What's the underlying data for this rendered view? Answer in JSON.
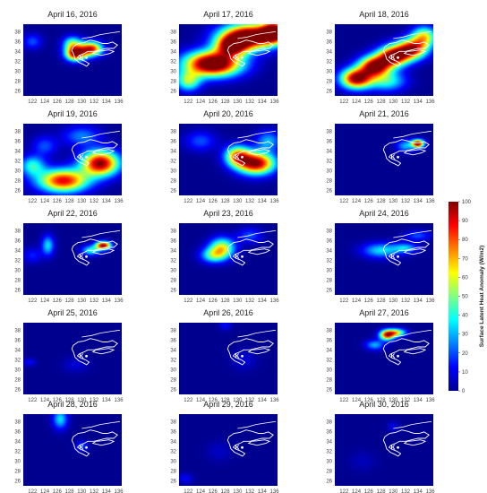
{
  "chart_data": [
    {
      "type": "heatmap",
      "title": "April 16, 2016",
      "marker": "K",
      "blobs": [
        [
          129,
          33.5,
          1.6,
          1.4,
          95
        ],
        [
          131.5,
          34.5,
          1.8,
          1.4,
          90
        ],
        [
          128.5,
          35.5,
          1.5,
          1.5,
          50
        ],
        [
          122,
          36,
          1.5,
          1.5,
          20
        ]
      ]
    },
    {
      "type": "heatmap",
      "title": "April 17, 2016",
      "marker": "K",
      "blobs": [
        [
          126,
          31.5,
          4.5,
          2.5,
          120
        ],
        [
          132,
          37,
          4.5,
          2.5,
          120
        ],
        [
          136,
          38,
          2,
          2,
          100
        ],
        [
          129,
          35,
          2.5,
          2,
          80
        ],
        [
          122,
          28,
          2,
          2,
          50
        ]
      ]
    },
    {
      "type": "heatmap",
      "title": "April 18, 2016",
      "marker": "K",
      "blobs": [
        [
          124,
          28.5,
          2.5,
          2,
          100
        ],
        [
          127,
          31,
          2.5,
          2,
          100
        ],
        [
          130,
          33,
          2.5,
          2,
          100
        ],
        [
          133,
          34.5,
          2.5,
          2,
          90
        ],
        [
          135,
          37,
          2,
          2,
          60
        ],
        [
          129,
          28,
          3,
          2,
          40
        ]
      ]
    },
    {
      "type": "heatmap",
      "title": "April 19, 2016",
      "marker": "K",
      "blobs": [
        [
          127,
          28,
          4,
          2.3,
          90
        ],
        [
          133,
          31.5,
          3,
          2.5,
          100
        ],
        [
          122,
          31,
          2,
          2,
          40
        ],
        [
          130,
          37,
          3,
          2,
          25
        ],
        [
          124,
          35,
          2,
          2,
          20
        ]
      ]
    },
    {
      "type": "heatmap",
      "title": "April 20, 2016",
      "marker": "K",
      "blobs": [
        [
          133,
          31.5,
          3,
          2.2,
          100
        ],
        [
          130,
          33,
          2,
          2,
          70
        ],
        [
          124,
          36,
          2.5,
          2,
          20
        ],
        [
          135,
          36,
          2,
          2,
          30
        ]
      ]
    },
    {
      "type": "heatmap",
      "title": "April 21, 2016",
      "marker": "K",
      "blobs": [
        [
          134,
          35.5,
          1,
          0.8,
          100
        ],
        [
          132,
          35,
          1.5,
          1.2,
          30
        ]
      ]
    },
    {
      "type": "heatmap",
      "title": "April 22, 2016",
      "marker": "K",
      "blobs": [
        [
          133.5,
          35,
          1.2,
          0.8,
          100
        ],
        [
          131.5,
          34,
          1.5,
          1,
          40
        ],
        [
          124.5,
          35,
          1,
          2,
          35
        ],
        [
          122,
          33,
          1.5,
          1.5,
          15
        ]
      ]
    },
    {
      "type": "heatmap",
      "title": "April 23, 2016",
      "marker": "K",
      "blobs": [
        [
          127.5,
          34.5,
          2,
          2,
          60
        ],
        [
          126,
          33,
          2,
          1.5,
          40
        ],
        [
          132,
          37,
          2,
          1.5,
          20
        ]
      ]
    },
    {
      "type": "heatmap",
      "title": "April 24, 2016",
      "marker": "K",
      "blobs": [
        [
          128,
          34,
          3,
          1.5,
          35
        ],
        [
          132,
          34.5,
          2,
          1,
          30
        ],
        [
          134,
          37,
          2,
          1,
          20
        ]
      ]
    },
    {
      "type": "heatmap",
      "title": "April 25, 2016",
      "marker": "K",
      "blobs": [
        [
          121.5,
          31.5,
          1,
          0.8,
          12
        ],
        [
          129,
          31,
          2,
          1.5,
          8
        ]
      ]
    },
    {
      "type": "heatmap",
      "title": "April 26, 2016",
      "marker": "K",
      "blobs": [
        [
          128,
          39,
          1,
          1,
          12
        ],
        [
          131,
          32,
          2,
          2,
          8
        ]
      ]
    },
    {
      "type": "heatmap",
      "title": "April 27, 2016",
      "marker": "K",
      "blobs": [
        [
          129,
          37,
          1.2,
          1,
          85
        ],
        [
          130.5,
          37.5,
          1.5,
          0.8,
          60
        ],
        [
          127,
          35,
          1.5,
          1,
          30
        ]
      ]
    },
    {
      "type": "heatmap",
      "title": "April 28, 2016",
      "marker": "K",
      "blobs": [
        [
          126.5,
          38.5,
          1.2,
          2,
          35
        ],
        [
          130,
          33,
          1,
          1,
          20
        ]
      ]
    },
    {
      "type": "heatmap",
      "title": "April 29, 2016",
      "marker": "K",
      "blobs": [
        [
          121.5,
          26.5,
          1.2,
          1,
          12
        ],
        [
          127,
          32,
          2,
          2,
          6
        ]
      ]
    },
    {
      "type": "heatmap",
      "title": "April 30, 2016",
      "marker": "K",
      "blobs": [
        [
          130,
          37,
          1,
          1,
          10
        ],
        [
          125,
          30,
          2,
          2,
          5
        ]
      ]
    }
  ],
  "axes": {
    "x_ticks": [
      "122",
      "124",
      "126",
      "128",
      "130",
      "132",
      "134",
      "136"
    ],
    "y_ticks": [
      "38",
      "36",
      "34",
      "32",
      "30",
      "28",
      "26"
    ],
    "xlim": [
      120.5,
      136.5
    ],
    "ylim": [
      25,
      39.5
    ]
  },
  "colorbar": {
    "label": "Surface Latent Heat Anomaly (W/m2)",
    "ticks": [
      "0",
      "10",
      "20",
      "30",
      "40",
      "50",
      "60",
      "70",
      "80",
      "90",
      "100"
    ],
    "range": [
      0,
      100
    ],
    "colors": [
      "#00008f",
      "#0000ff",
      "#0080ff",
      "#00ffff",
      "#80ff80",
      "#ffff00",
      "#ff8000",
      "#ff0000",
      "#800000"
    ]
  }
}
